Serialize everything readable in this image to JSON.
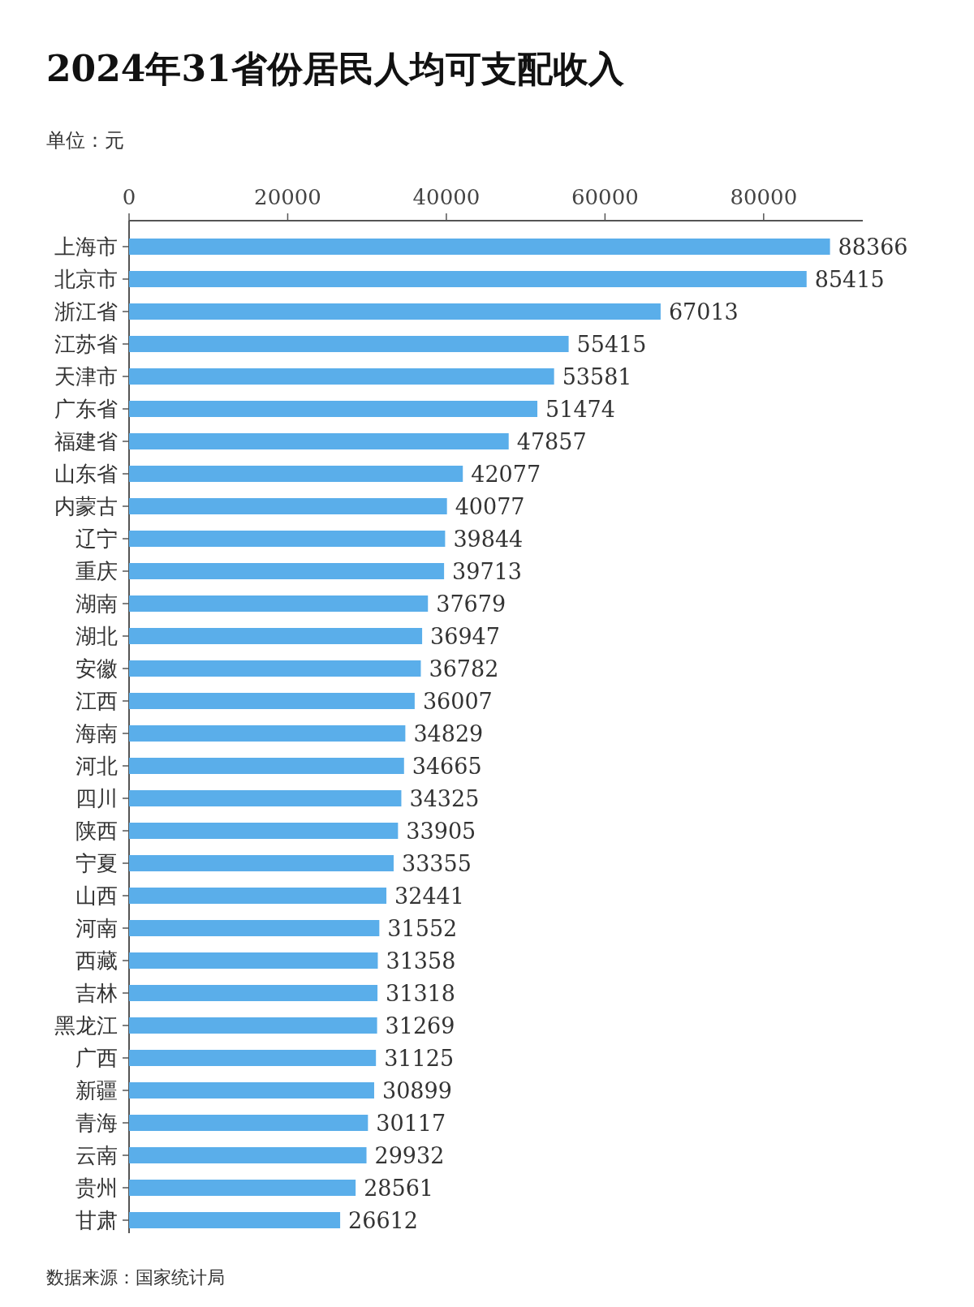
{
  "chart_data": {
    "type": "bar",
    "orientation": "horizontal",
    "title": "2024年31省份居民人均可支配收入",
    "subtitle": "单位：元",
    "annotations": [
      "数据来源：国家统计局"
    ],
    "categories": [
      "上海市",
      "北京市",
      "浙江省",
      "江苏省",
      "天津市",
      "广东省",
      "福建省",
      "山东省",
      "内蒙古",
      "辽宁",
      "重庆",
      "湖南",
      "湖北",
      "安徽",
      "江西",
      "海南",
      "河北",
      "四川",
      "陕西",
      "宁夏",
      "山西",
      "河南",
      "西藏",
      "吉林",
      "黑龙江",
      "广西",
      "新疆",
      "青海",
      "云南",
      "贵州",
      "甘肃"
    ],
    "values": [
      88366,
      85415,
      67013,
      55415,
      53581,
      51474,
      47857,
      42077,
      40077,
      39844,
      39713,
      37679,
      36947,
      36782,
      36007,
      34829,
      34665,
      34325,
      33905,
      33355,
      32441,
      31552,
      31358,
      31318,
      31269,
      31125,
      30899,
      30117,
      29932,
      28561,
      26612
    ],
    "color": "#5aaeea",
    "xlim": [
      0,
      92500
    ],
    "xticks": [
      0,
      20000,
      40000,
      60000,
      80000
    ],
    "data_labels": true
  }
}
